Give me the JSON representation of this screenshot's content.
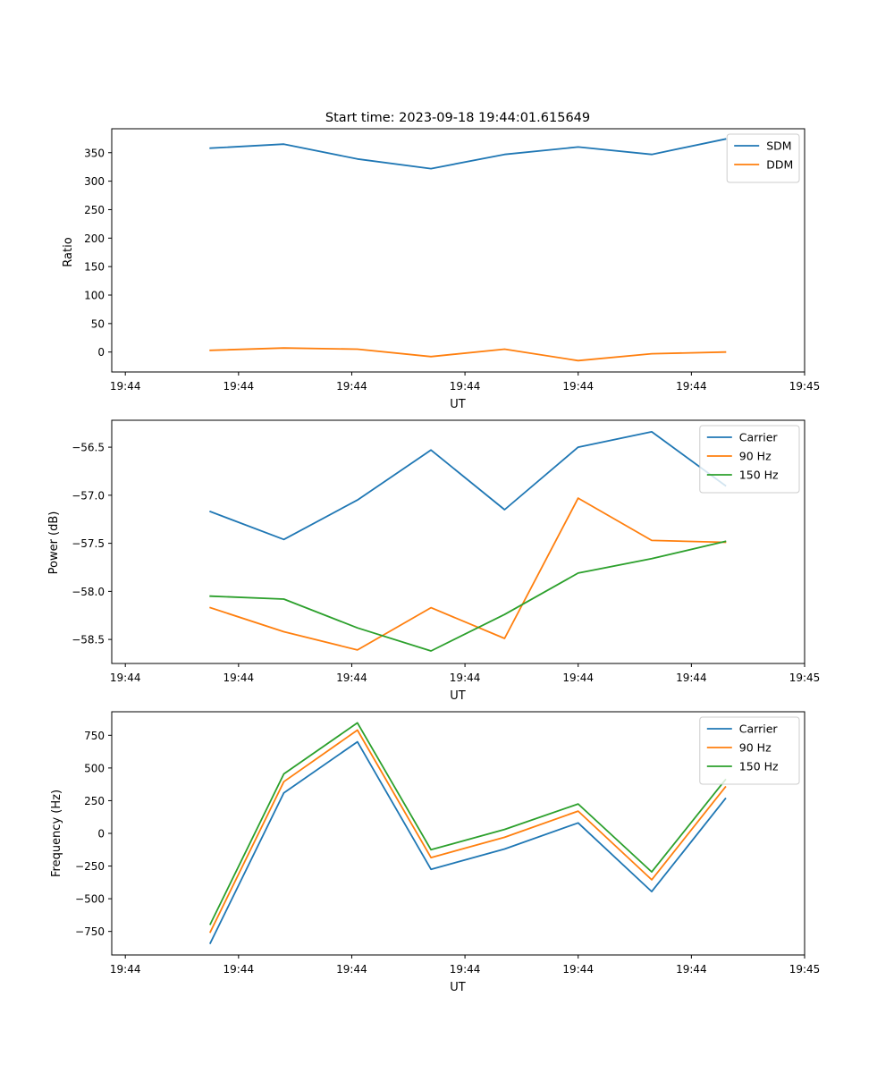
{
  "figure_title": "Start time: 2023-09-18 19:44:01.615649",
  "colors": {
    "blue": "#1f77b4",
    "orange": "#ff7f0e",
    "green": "#2ca02c"
  },
  "chart_data": [
    {
      "type": "line",
      "title": "Start time: 2023-09-18 19:44:01.615649",
      "xlabel": "UT",
      "ylabel": "Ratio",
      "x": [
        0.75,
        1.4,
        2.05,
        2.7,
        3.35,
        4.0,
        4.65,
        5.3
      ],
      "xlim": [
        -0.12,
        6.0
      ],
      "xticks": [
        0,
        1,
        2,
        3,
        4,
        5,
        6
      ],
      "xticklabels": [
        "19:44",
        "19:44",
        "19:44",
        "19:44",
        "19:44",
        "19:44",
        "19:45"
      ],
      "ylim": [
        -35,
        392
      ],
      "yticks": [
        0,
        50,
        100,
        150,
        200,
        250,
        300,
        350
      ],
      "yticklabels": [
        "0",
        "50",
        "100",
        "150",
        "200",
        "250",
        "300",
        "350"
      ],
      "legend_position": "top-right",
      "series": [
        {
          "name": "SDM",
          "color": "#1f77b4",
          "values": [
            358,
            365,
            339,
            322,
            347,
            360,
            347,
            374
          ]
        },
        {
          "name": "DDM",
          "color": "#ff7f0e",
          "values": [
            3,
            7,
            5,
            -8,
            5,
            -15,
            -3,
            0
          ]
        }
      ]
    },
    {
      "type": "line",
      "title": "",
      "xlabel": "UT",
      "ylabel": "Power (dB)",
      "x": [
        0.75,
        1.4,
        2.05,
        2.7,
        3.35,
        4.0,
        4.65,
        5.3
      ],
      "xlim": [
        -0.12,
        6.0
      ],
      "xticks": [
        0,
        1,
        2,
        3,
        4,
        5,
        6
      ],
      "xticklabels": [
        "19:44",
        "19:44",
        "19:44",
        "19:44",
        "19:44",
        "19:44",
        "19:45"
      ],
      "ylim": [
        -58.75,
        -56.22
      ],
      "yticks": [
        -58.5,
        -58.0,
        -57.5,
        -57.0,
        -56.5
      ],
      "yticklabels": [
        "−58.5",
        "−58.0",
        "−57.5",
        "−57.0",
        "−56.5"
      ],
      "legend_position": "top-right",
      "series": [
        {
          "name": "Carrier",
          "color": "#1f77b4",
          "values": [
            -57.17,
            -57.46,
            -57.05,
            -56.53,
            -57.15,
            -56.5,
            -56.34,
            -56.9
          ]
        },
        {
          "name": "90 Hz",
          "color": "#ff7f0e",
          "values": [
            -58.17,
            -58.42,
            -58.61,
            -58.17,
            -58.49,
            -57.03,
            -57.47,
            -57.49
          ]
        },
        {
          "name": "150 Hz",
          "color": "#2ca02c",
          "values": [
            -58.05,
            -58.08,
            -58.38,
            -58.62,
            -58.24,
            -57.81,
            -57.66,
            -57.48
          ]
        }
      ]
    },
    {
      "type": "line",
      "title": "",
      "xlabel": "UT",
      "ylabel": "Frequency (Hz)",
      "x": [
        0.75,
        1.4,
        2.05,
        2.7,
        3.35,
        4.0,
        4.65,
        5.3
      ],
      "xlim": [
        -0.12,
        6.0
      ],
      "xticks": [
        0,
        1,
        2,
        3,
        4,
        5,
        6
      ],
      "xticklabels": [
        "19:44",
        "19:44",
        "19:44",
        "19:44",
        "19:44",
        "19:44",
        "19:45"
      ],
      "ylim": [
        -930,
        930
      ],
      "yticks": [
        -750,
        -500,
        -250,
        0,
        250,
        500,
        750
      ],
      "yticklabels": [
        "−750",
        "−500",
        "−250",
        "0",
        "250",
        "500",
        "750"
      ],
      "legend_position": "top-right",
      "series": [
        {
          "name": "Carrier",
          "color": "#1f77b4",
          "values": [
            -840,
            310,
            700,
            -275,
            -120,
            80,
            -445,
            265
          ]
        },
        {
          "name": "90 Hz",
          "color": "#ff7f0e",
          "values": [
            -755,
            395,
            790,
            -185,
            -30,
            170,
            -355,
            355
          ]
        },
        {
          "name": "150 Hz",
          "color": "#2ca02c",
          "values": [
            -695,
            455,
            845,
            -125,
            30,
            225,
            -295,
            410
          ]
        }
      ]
    }
  ]
}
